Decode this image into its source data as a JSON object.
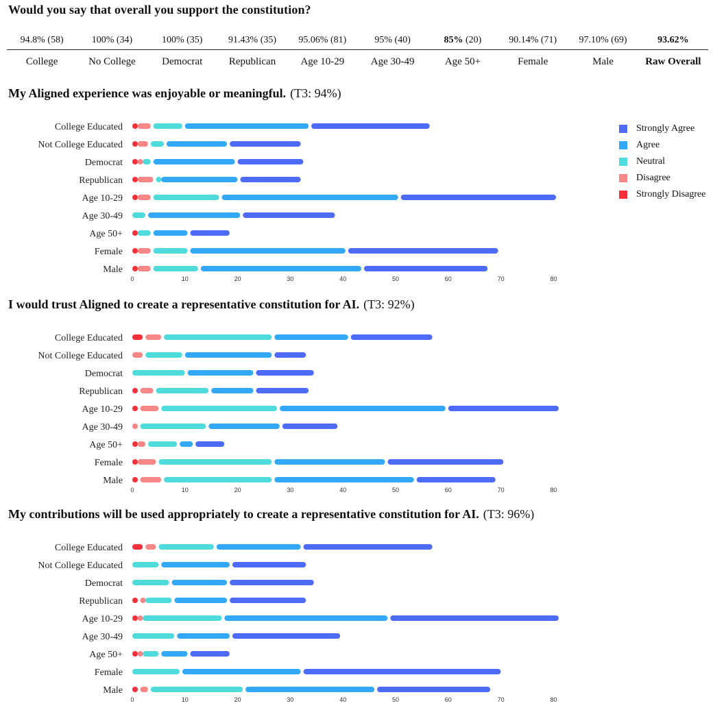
{
  "summary": {
    "question": "Would you say that overall you support the constitution?",
    "values": [
      {
        "text": "94.8% (58)",
        "bold": false
      },
      {
        "text": "100% (34)",
        "bold": false
      },
      {
        "text": "100% (35)",
        "bold": false
      },
      {
        "text": "91.43% (35)",
        "bold": false
      },
      {
        "text": "95.06% (81)",
        "bold": false
      },
      {
        "text": "95% (40)",
        "bold": false
      },
      {
        "text": "85%",
        "suffix": " (20)",
        "bold": true
      },
      {
        "text": "90.14% (71)",
        "bold": false
      },
      {
        "text": "97.10% (69)",
        "bold": false
      },
      {
        "text": "93.62%",
        "bold": true
      }
    ],
    "labels": [
      {
        "text": "College",
        "bold": false
      },
      {
        "text": "No College",
        "bold": false
      },
      {
        "text": "Democrat",
        "bold": false
      },
      {
        "text": "Republican",
        "bold": false
      },
      {
        "text": "Age 10-29",
        "bold": false
      },
      {
        "text": "Age 30-49",
        "bold": false
      },
      {
        "text": "Age 50+",
        "bold": false
      },
      {
        "text": "Female",
        "bold": false
      },
      {
        "text": "Male",
        "bold": false
      },
      {
        "text": "Raw Overall",
        "bold": true
      }
    ]
  },
  "legend": [
    {
      "name": "Strongly Agree",
      "color": "#4d6bf5"
    },
    {
      "name": "Agree",
      "color": "#33a8f7"
    },
    {
      "name": "Neutral",
      "color": "#4fdadb"
    },
    {
      "name": "Disagree",
      "color": "#f78686"
    },
    {
      "name": "Strongly Disagree",
      "color": "#f5303a"
    }
  ],
  "chart_data": [
    {
      "type": "bar",
      "title": "My Aligned experience was enjoyable or meaningful.",
      "title_extra": "(T3: 94%)",
      "categories": [
        "College Educated",
        "Not College Educated",
        "Democrat",
        "Republican",
        "Age 10-29",
        "Age 30-49",
        "Age 50+",
        "Female",
        "Male"
      ],
      "series": [
        {
          "name": "Strongly Disagree",
          "values": [
            1,
            1,
            1,
            1,
            1,
            0,
            1,
            1,
            1
          ]
        },
        {
          "name": "Disagree",
          "values": [
            3,
            2.5,
            1,
            3.5,
            3,
            0,
            0,
            3,
            3
          ]
        },
        {
          "name": "Neutral",
          "values": [
            6,
            3,
            2,
            1,
            13,
            3,
            3,
            7,
            9
          ]
        },
        {
          "name": "Agree",
          "values": [
            24,
            12,
            16,
            15,
            34,
            18,
            7,
            30,
            31
          ]
        },
        {
          "name": "Strongly Agree",
          "values": [
            23,
            14,
            13,
            12,
            30,
            18,
            8,
            29,
            24
          ]
        }
      ],
      "xlim": [
        0,
        80
      ],
      "xticks": [
        0,
        10,
        20,
        30,
        40,
        50,
        60,
        70,
        80
      ]
    },
    {
      "type": "bar",
      "title": "I would trust Aligned to create a representative constitution for AI.",
      "title_extra": "(T3: 92%)",
      "categories": [
        "College Educated",
        "Not College Educated",
        "Democrat",
        "Republican",
        "Age 10-29",
        "Age 30-49",
        "Age 50+",
        "Female",
        "Male"
      ],
      "series": [
        {
          "name": "Strongly Disagree",
          "values": [
            2.5,
            0,
            0,
            1.5,
            1.5,
            0,
            1,
            1,
            1.5
          ]
        },
        {
          "name": "Disagree",
          "values": [
            3.5,
            2.5,
            0,
            3,
            4,
            1.5,
            2,
            4,
            4.5
          ]
        },
        {
          "name": "Neutral",
          "values": [
            21,
            7.5,
            10.5,
            10.5,
            22.5,
            13,
            6,
            22,
            21
          ]
        },
        {
          "name": "Agree",
          "values": [
            14.5,
            17,
            13,
            8.5,
            32,
            14,
            3,
            21.5,
            27
          ]
        },
        {
          "name": "Strongly Agree",
          "values": [
            16,
            6.5,
            11.5,
            10.5,
            21.5,
            11,
            6,
            22.5,
            15.5
          ]
        }
      ],
      "xlim": [
        0,
        80
      ],
      "xticks": [
        0,
        10,
        20,
        30,
        40,
        50,
        60,
        70,
        80
      ]
    },
    {
      "type": "bar",
      "title": "My contributions will be used appropriately to create a representative constitution for AI.",
      "title_extra": "(T3: 96%)",
      "categories": [
        "College Educated",
        "Not College Educated",
        "Democrat",
        "Republican",
        "Age 10-29",
        "Age 30-49",
        "Age 50+",
        "Female",
        "Male"
      ],
      "series": [
        {
          "name": "Strongly Disagree",
          "values": [
            2.5,
            0,
            0,
            1.5,
            1,
            0,
            1,
            0,
            1.5
          ]
        },
        {
          "name": "Disagree",
          "values": [
            2.5,
            0,
            0,
            1,
            1,
            0,
            1,
            0,
            2
          ]
        },
        {
          "name": "Neutral",
          "values": [
            11,
            5.5,
            7.5,
            5.5,
            15.5,
            8.5,
            3.5,
            9.5,
            18
          ]
        },
        {
          "name": "Agree",
          "values": [
            16.5,
            13.5,
            11,
            10.5,
            31.5,
            10.5,
            5.5,
            23,
            25
          ]
        },
        {
          "name": "Strongly Agree",
          "values": [
            25,
            14.5,
            16.5,
            15,
            32.5,
            21,
            8,
            38,
            22
          ]
        }
      ],
      "xlim": [
        0,
        80
      ],
      "xticks": [
        0,
        10,
        20,
        30,
        40,
        50,
        60,
        70,
        80
      ]
    }
  ]
}
